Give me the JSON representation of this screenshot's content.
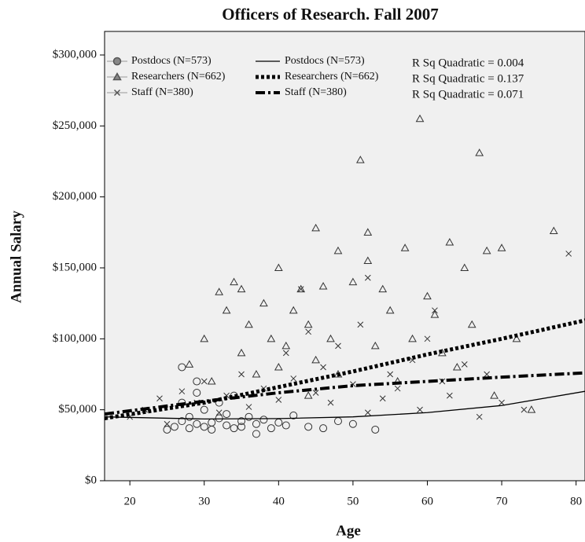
{
  "chart_data": {
    "type": "scatter",
    "title": "Officers of Research. Fall 2007",
    "xlabel": "Age",
    "ylabel": "Annual Salary",
    "xlim": [
      16.6,
      81.2
    ],
    "xticks": [
      20,
      30,
      40,
      50,
      60,
      70,
      80
    ],
    "ylim": [
      0,
      316600
    ],
    "yticks": [
      {
        "value": 0,
        "label": "$0"
      },
      {
        "value": 50000,
        "label": "$50,000"
      },
      {
        "value": 100000,
        "label": "$100,000"
      },
      {
        "value": 150000,
        "label": "$150,000"
      },
      {
        "value": 200000,
        "label": "$200,000"
      },
      {
        "value": 250000,
        "label": "$250,000"
      },
      {
        "value": 300000,
        "label": "$300,000"
      }
    ],
    "annotations": [
      "R Sq Quadratic = 0.004",
      "R Sq Quadratic = 0.137",
      "R Sq Quadratic = 0.071"
    ],
    "series": [
      {
        "name": "Postdocs (N=573)",
        "marker": "circle",
        "color": "#333333",
        "x": [
          25,
          26,
          27,
          27,
          28,
          28,
          29,
          29,
          30,
          30,
          31,
          31,
          32,
          32,
          33,
          33,
          34,
          34,
          35,
          35,
          36,
          37,
          37,
          38,
          39,
          40,
          41,
          42,
          44,
          46,
          48,
          50,
          53,
          27,
          29
        ],
        "values": [
          36000,
          38000,
          80000,
          42000,
          37000,
          45000,
          40000,
          62000,
          38000,
          50000,
          41000,
          36000,
          44000,
          55000,
          39000,
          47000,
          37000,
          60000,
          42000,
          38000,
          45000,
          33000,
          40000,
          43000,
          37000,
          41000,
          39000,
          46000,
          38000,
          37000,
          42000,
          40000,
          36000,
          55000,
          70000
        ]
      },
      {
        "name": "Researchers (N=662)",
        "marker": "triangle",
        "color": "#333333",
        "x": [
          30,
          32,
          33,
          34,
          35,
          35,
          36,
          37,
          38,
          39,
          40,
          40,
          41,
          42,
          43,
          44,
          45,
          45,
          46,
          47,
          48,
          48,
          50,
          51,
          52,
          52,
          53,
          54,
          55,
          56,
          57,
          58,
          59,
          60,
          61,
          62,
          63,
          64,
          65,
          66,
          67,
          68,
          69,
          70,
          72,
          74,
          77,
          28,
          31,
          44
        ],
        "values": [
          100000,
          133000,
          120000,
          140000,
          135000,
          90000,
          110000,
          75000,
          125000,
          100000,
          150000,
          80000,
          95000,
          120000,
          135000,
          110000,
          178000,
          85000,
          137000,
          100000,
          162000,
          75000,
          140000,
          226000,
          175000,
          155000,
          95000,
          135000,
          120000,
          70000,
          164000,
          100000,
          255000,
          130000,
          117000,
          90000,
          168000,
          80000,
          150000,
          110000,
          231000,
          162000,
          60000,
          164000,
          100000,
          50000,
          176000,
          82000,
          70000,
          60000
        ]
      },
      {
        "name": "Staff (N=380)",
        "marker": "x",
        "color": "#333333",
        "x": [
          20,
          22,
          24,
          25,
          27,
          29,
          30,
          32,
          33,
          35,
          36,
          38,
          40,
          41,
          42,
          43,
          45,
          46,
          47,
          48,
          50,
          51,
          52,
          54,
          55,
          56,
          58,
          59,
          60,
          61,
          62,
          63,
          65,
          67,
          68,
          70,
          73,
          79,
          44,
          52
        ],
        "values": [
          45000,
          50000,
          58000,
          40000,
          63000,
          55000,
          70000,
          48000,
          60000,
          75000,
          52000,
          65000,
          57000,
          90000,
          72000,
          135000,
          62000,
          80000,
          55000,
          95000,
          68000,
          110000,
          143000,
          58000,
          75000,
          65000,
          85000,
          50000,
          100000,
          120000,
          70000,
          60000,
          82000,
          45000,
          75000,
          55000,
          50000,
          160000,
          105000,
          48000
        ]
      },
      {
        "name": "Postdocs (N=573)",
        "marker": "line",
        "line_style": "solid",
        "color": "#000000",
        "x": [
          16.6,
          30,
          40,
          50,
          60,
          70,
          81.2
        ],
        "values": [
          45000,
          43500,
          43800,
          45000,
          48000,
          53000,
          63000
        ]
      },
      {
        "name": "Researchers (N=662)",
        "marker": "line",
        "line_style": "dotted",
        "color": "#000000",
        "x": [
          16.6,
          30,
          40,
          50,
          60,
          70,
          81.2
        ],
        "values": [
          44000,
          55000,
          66000,
          77000,
          89000,
          100000,
          113000
        ]
      },
      {
        "name": "Staff (N=380)",
        "marker": "line",
        "line_style": "dashdot",
        "color": "#000000",
        "x": [
          16.6,
          30,
          40,
          50,
          60,
          70,
          81.2
        ],
        "values": [
          47000,
          56000,
          62000,
          67000,
          70000,
          73000,
          76000
        ]
      }
    ]
  }
}
